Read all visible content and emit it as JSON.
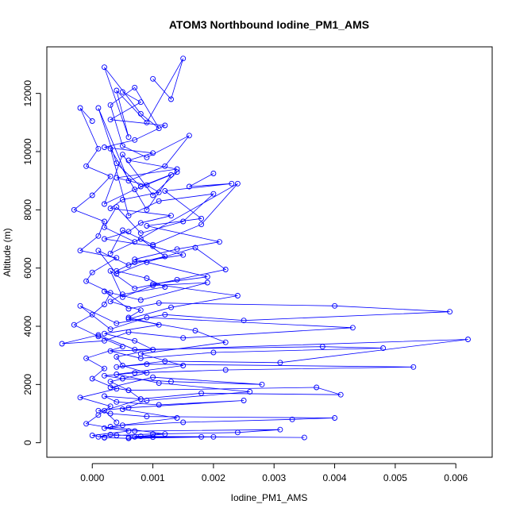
{
  "chart_data": {
    "type": "line",
    "title": "ATOM3 Northbound Iodine_PM1_AMS",
    "xlabel": "Iodine_PM1_AMS",
    "ylabel": "Altitude (m)",
    "xlim": [
      -0.00075,
      0.0066
    ],
    "ylim": [
      -500,
      13600
    ],
    "x_ticks": [
      0.0,
      0.001,
      0.002,
      0.003,
      0.004,
      0.005,
      0.006
    ],
    "x_tick_labels": [
      "0.000",
      "0.001",
      "0.002",
      "0.003",
      "0.004",
      "0.005",
      "0.006"
    ],
    "y_ticks": [
      0,
      2000,
      4000,
      6000,
      8000,
      10000,
      12000
    ],
    "y_tick_labels": [
      "0",
      "2000",
      "4000",
      "6000",
      "8000",
      "10000",
      "12000"
    ],
    "grid": false,
    "series_color": "#0000ff",
    "marker": "open-circle",
    "series": [
      {
        "x": [
          0.001,
          0.0013,
          0.0015,
          0.0009,
          0.0004,
          0.0006,
          0.0002,
          0.0008,
          0.0011,
          0.0007,
          0.0003,
          0.0005,
          0.0009,
          0.0016,
          0.0012,
          0.0006,
          0.0001,
          0.0004,
          0.0008,
          0.0014,
          0.001,
          0.0005,
          0.0002,
          0.0007,
          0.0013,
          0.0009,
          0.0003,
          0.0006,
          0.0011,
          0.002,
          0.0015,
          0.0008,
          0.0004,
          0.0002,
          0.0007,
          0.0024,
          0.0018,
          0.001,
          0.0005,
          0.0003,
          0.0008,
          0.0012,
          0.0006,
          0.0001,
          0.0004,
          0.0009,
          0.0017,
          0.0022,
          0.0014,
          0.0007,
          0.0003,
          0.0005,
          0.001,
          0.0019,
          0.0008,
          0.0002,
          0.0006,
          0.0011,
          0.004,
          0.0059,
          0.0025,
          0.0012,
          0.0004,
          -0.0002,
          0.0003,
          0.0009,
          0.0043,
          0.0015,
          0.0006,
          0.0002,
          -0.0005,
          0.0001,
          0.0007,
          0.0038,
          0.0048,
          0.002,
          0.0008,
          0.0003,
          0.0062,
          0.0031,
          0.0012,
          0.0004,
          0.0009,
          0.0053,
          0.0022,
          0.0007,
          0.0002,
          0.0005,
          0.0013,
          0.0028,
          0.001,
          0.0003,
          0.0006,
          0.0037,
          0.0041,
          0.0018,
          0.0008,
          0.0002,
          0.0004,
          0.0011,
          0.0025,
          0.0006,
          0.0001,
          0.0003,
          0.0009,
          0.004,
          0.0033,
          0.0015,
          0.0005,
          0.0002,
          0.0007,
          0.0031,
          0.0024,
          0.001,
          0.0004,
          0.0001,
          0.0003,
          0.0008,
          0.0035,
          0.002,
          0.0006,
          0.0002
        ],
        "y": [
          12500,
          11800,
          13200,
          11000,
          12100,
          10500,
          12900,
          11300,
          10800,
          12200,
          11600,
          10200,
          9800,
          10550,
          9500,
          9000,
          11500,
          9600,
          8800,
          9300,
          8500,
          9900,
          8200,
          8700,
          9200,
          8000,
          10100,
          7800,
          8300,
          8550,
          7600,
          7200,
          8100,
          7400,
          6900,
          8900,
          7500,
          6800,
          7300,
          6500,
          7000,
          6400,
          6100,
          6600,
          5800,
          6200,
          6700,
          5950,
          5600,
          5300,
          5900,
          5000,
          5400,
          5500,
          4900,
          5200,
          4600,
          4800,
          4700,
          4500,
          4200,
          4400,
          4100,
          4700,
          3900,
          4300,
          3950,
          3600,
          3800,
          3500,
          3400,
          3700,
          3200,
          3300,
          3250,
          3100,
          2900,
          3150,
          3550,
          2750,
          2800,
          2600,
          2700,
          2600,
          2500,
          2400,
          2300,
          2200,
          2100,
          2000,
          2250,
          1900,
          1800,
          1900,
          1650,
          1700,
          1500,
          1600,
          1400,
          1300,
          1450,
          1200,
          1100,
          1000,
          900,
          850,
          800,
          700,
          600,
          500,
          400,
          450,
          350,
          300,
          250,
          200,
          280,
          220,
          180,
          200,
          150,
          170
        ]
      },
      {
        "x": [
          0.0005,
          0.0008,
          0.0003,
          0.0012,
          0.0007,
          0.0002,
          0.001,
          0.0006,
          0.0014,
          0.0004,
          0.0009,
          0.0011,
          0.0005,
          0.0003,
          0.0013,
          0.0008,
          0.0006,
          0.0002,
          0.001,
          0.0015,
          0.0007,
          0.0004,
          0.0009,
          0.0012,
          0.0005,
          0.0003,
          0.0008,
          0.0006,
          0.0011,
          0.0002,
          0.0007,
          0.001,
          0.0004,
          0.0005,
          0.0009,
          0.0003,
          0.0006,
          0.0008,
          0.0002,
          0.0004
        ],
        "y": [
          12050,
          11700,
          11100,
          10900,
          10400,
          10150,
          9950,
          9700,
          9400,
          9100,
          8850,
          8600,
          8350,
          8050,
          7800,
          7550,
          7250,
          7000,
          6750,
          6450,
          6200,
          5900,
          5650,
          5350,
          5100,
          4850,
          4550,
          4300,
          4050,
          3750,
          3500,
          3200,
          2950,
          2650,
          2400,
          2100,
          1800,
          1500,
          1100,
          700
        ]
      },
      {
        "x": [
          0.0,
          -0.0002,
          0.0001,
          -0.0001,
          0.0003,
          0.0,
          -0.0003,
          0.0002,
          0.0001,
          -0.0002,
          0.0004,
          0.0,
          -0.0001,
          0.0003,
          0.0002,
          0.0,
          -0.0003,
          0.0001,
          0.0005,
          -0.0001,
          0.0002,
          0.0,
          0.0004,
          -0.0002,
          0.0003,
          0.0001,
          -0.0001,
          0.0006,
          0.0,
          0.0002
        ],
        "y": [
          11050,
          11500,
          10100,
          9500,
          9150,
          8500,
          8000,
          7600,
          7100,
          6600,
          6350,
          5850,
          5550,
          5150,
          4750,
          4400,
          4050,
          3650,
          3300,
          2900,
          2550,
          2200,
          1850,
          1550,
          1250,
          950,
          650,
          400,
          250,
          180
        ]
      },
      {
        "x": [
          0.002,
          0.0016,
          0.0023,
          0.0012,
          0.0018,
          0.0009,
          0.0021,
          0.0014,
          0.0007,
          0.0019,
          0.001,
          0.0024,
          0.0013,
          0.0006,
          0.0017,
          0.0022,
          0.0008,
          0.0015,
          0.0004,
          0.0011,
          0.0026,
          0.0009,
          0.0005,
          0.0014,
          0.0003,
          0.0012,
          0.0007,
          0.0018,
          0.0006,
          0.001
        ],
        "y": [
          9250,
          8800,
          8900,
          8650,
          7700,
          7450,
          6900,
          6650,
          6300,
          5700,
          5450,
          5050,
          4650,
          4250,
          3850,
          3450,
          3050,
          2650,
          2350,
          2050,
          1750,
          1450,
          1150,
          850,
          550,
          300,
          200,
          200,
          180,
          190
        ]
      }
    ]
  }
}
